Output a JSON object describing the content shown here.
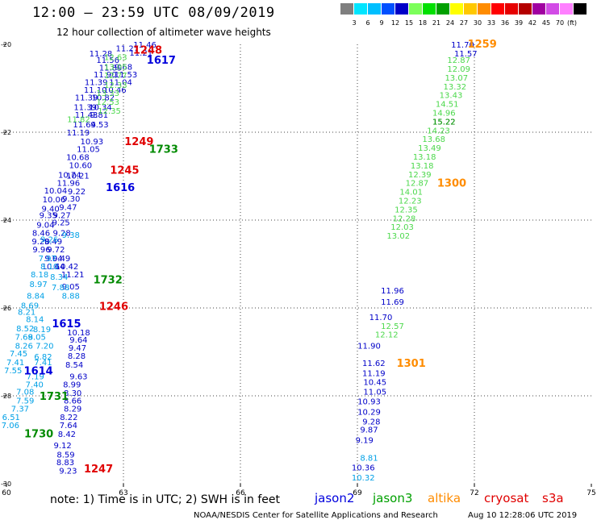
{
  "header": {
    "title": "12:00 – 23:59 UTC 08/09/2019",
    "subtitle": "12 hour collection of altimeter wave heights"
  },
  "scale": {
    "unit": "(ft)",
    "colors": [
      "#7f7f7f",
      "#00e5ff",
      "#00bfff",
      "#0050ff",
      "#0000c8",
      "#7cff5a",
      "#00e000",
      "#00a000",
      "#ffff00",
      "#ffc800",
      "#ff8c00",
      "#ff0000",
      "#e60000",
      "#b40000",
      "#a000a0",
      "#d24be6",
      "#ff80ff",
      "#000000"
    ],
    "labels": [
      "3",
      "6",
      "9",
      "12",
      "15",
      "18",
      "21",
      "24",
      "27",
      "30",
      "33",
      "36",
      "39",
      "42",
      "45",
      "70"
    ]
  },
  "axes": {
    "x_ticks": [
      "60",
      "63",
      "66",
      "69",
      "72",
      "75"
    ],
    "y_ticks": [
      "-20",
      "-22",
      "-24",
      "-26",
      "-28",
      "-30"
    ]
  },
  "time_labels": [
    {
      "text": "1248",
      "color": "#e00000",
      "lon": 63.62,
      "lat": -20.12
    },
    {
      "text": "1617",
      "color": "#0000dd",
      "lon": 63.97,
      "lat": -20.35
    },
    {
      "text": "1733",
      "color": "#008a00",
      "lon": 64.03,
      "lat": -22.38
    },
    {
      "text": "1249",
      "color": "#e00000",
      "lon": 63.4,
      "lat": -22.2
    },
    {
      "text": "1245",
      "color": "#e00000",
      "lon": 63.03,
      "lat": -22.85
    },
    {
      "text": "1616",
      "color": "#0000dd",
      "lon": 62.92,
      "lat": -23.25
    },
    {
      "text": "1732",
      "color": "#008a00",
      "lon": 62.6,
      "lat": -25.35
    },
    {
      "text": "1246",
      "color": "#e00000",
      "lon": 62.75,
      "lat": -25.95
    },
    {
      "text": "1615",
      "color": "#0000dd",
      "lon": 61.54,
      "lat": -26.35
    },
    {
      "text": "1614",
      "color": "#0000dd",
      "lon": 60.82,
      "lat": -27.42
    },
    {
      "text": "1731",
      "color": "#008a00",
      "lon": 61.22,
      "lat": -28.0
    },
    {
      "text": "1730",
      "color": "#008a00",
      "lon": 60.83,
      "lat": -28.85
    },
    {
      "text": "1247",
      "color": "#e00000",
      "lon": 62.36,
      "lat": -29.65
    },
    {
      "text": "1259",
      "color": "#ff8c00",
      "lon": 72.2,
      "lat": -19.98
    },
    {
      "text": "1300",
      "color": "#ff8c00",
      "lon": 71.42,
      "lat": -23.15
    },
    {
      "text": "1301",
      "color": "#ff8c00",
      "lon": 70.38,
      "lat": -27.25
    }
  ],
  "tracks": [
    {
      "name": "jason2-track1",
      "color": "#0000c8",
      "points": [
        [
          "11.46",
          63.55,
          -20.0
        ],
        [
          "11.27",
          63.1,
          -20.08
        ],
        [
          "11.21",
          63.45,
          -20.18
        ],
        [
          "11.28",
          62.42,
          -20.2
        ],
        [
          "11.56",
          62.6,
          -20.35
        ],
        [
          "11.89",
          62.67,
          -20.52
        ],
        [
          "9.68",
          63.0,
          -20.5
        ],
        [
          "11.90",
          62.53,
          -20.68
        ],
        [
          "11.53",
          63.06,
          -20.68
        ],
        [
          "11.39",
          62.3,
          -20.85
        ],
        [
          "11.04",
          62.93,
          -20.85
        ],
        [
          "11.10",
          62.28,
          -21.03
        ],
        [
          "10.46",
          62.78,
          -21.03
        ],
        [
          "11.39",
          62.05,
          -21.2
        ],
        [
          "10.82",
          62.48,
          -21.2
        ],
        [
          "11.39",
          62.02,
          -21.42
        ],
        [
          "10.34",
          62.41,
          -21.42
        ],
        [
          "11.43",
          62.05,
          -21.6
        ],
        [
          "9.81",
          62.38,
          -21.6
        ],
        [
          "11.64",
          62.0,
          -21.82
        ],
        [
          "9.53",
          62.39,
          -21.82
        ],
        [
          "11.19",
          61.84,
          -22.0
        ],
        [
          "10.93",
          62.19,
          -22.2
        ],
        [
          "11.05",
          62.1,
          -22.38
        ],
        [
          "10.68",
          61.83,
          -22.56
        ],
        [
          "10.60",
          61.9,
          -22.74
        ],
        [
          "10.74",
          61.62,
          -22.96
        ],
        [
          "11.96",
          61.59,
          -23.15
        ],
        [
          "10.21",
          61.83,
          -22.98
        ],
        [
          "10.04",
          61.26,
          -23.32
        ],
        [
          "9.22",
          61.8,
          -23.34
        ],
        [
          "10.06",
          61.22,
          -23.52
        ],
        [
          "9.30",
          61.66,
          -23.5
        ],
        [
          "9.40",
          61.13,
          -23.73
        ],
        [
          "9.47",
          61.58,
          -23.7
        ],
        [
          "9.35",
          61.07,
          -23.88
        ],
        [
          "9.27",
          61.42,
          -23.88
        ],
        [
          "9.04",
          61.0,
          -24.1
        ],
        [
          "9.25",
          61.4,
          -24.05
        ],
        [
          "9.28",
          61.42,
          -24.28
        ],
        [
          "8.46",
          60.89,
          -24.28
        ],
        [
          "9.28",
          60.88,
          -24.48
        ],
        [
          "9.49",
          61.2,
          -24.48
        ],
        [
          "9.72",
          61.27,
          -24.66
        ],
        [
          "9.96",
          60.9,
          -24.66
        ],
        [
          "9.04",
          61.21,
          -24.86
        ],
        [
          "9.49",
          61.41,
          -24.86
        ],
        [
          "10.64",
          61.2,
          -25.05
        ],
        [
          "10.42",
          61.55,
          -25.05
        ],
        [
          "11.21",
          61.7,
          -25.23
        ],
        [
          "9.05",
          61.65,
          -25.5
        ],
        [
          "10.18",
          61.85,
          -26.55
        ],
        [
          "9.64",
          61.85,
          -26.72
        ],
        [
          "9.47",
          61.82,
          -26.9
        ],
        [
          "8.28",
          61.8,
          -27.08
        ],
        [
          "8.54",
          61.74,
          -27.28
        ],
        [
          "9.63",
          61.85,
          -27.55
        ],
        [
          "8.99",
          61.68,
          -27.73
        ],
        [
          "8.30",
          61.7,
          -27.93
        ],
        [
          "8.66",
          61.7,
          -28.1
        ],
        [
          "8.29",
          61.7,
          -28.28
        ],
        [
          "8.22",
          61.6,
          -28.48
        ],
        [
          "7.64",
          61.59,
          -28.66
        ],
        [
          "8.42",
          61.55,
          -28.86
        ],
        [
          "9.12",
          61.44,
          -29.12
        ],
        [
          "8.59",
          61.52,
          -29.33
        ],
        [
          "8.83",
          61.51,
          -29.5
        ],
        [
          "9.23",
          61.58,
          -29.7
        ]
      ]
    },
    {
      "name": "jason3-track1",
      "color": "#4bd84b",
      "points": [
        [
          "12.63",
          62.8,
          -20.28
        ],
        [
          "13.05",
          62.8,
          -20.5
        ],
        [
          "12.77",
          62.8,
          -20.7
        ],
        [
          "12.33",
          62.8,
          -20.92
        ],
        [
          "13.33",
          62.6,
          -21.1
        ],
        [
          "12.53",
          62.6,
          -21.3
        ],
        [
          "12.35",
          62.64,
          -21.5
        ],
        [
          "11.82",
          61.85,
          -21.7
        ]
      ]
    },
    {
      "name": "jason3-track2",
      "color": "#00a0e6",
      "points": [
        [
          "9.38",
          61.65,
          -24.33
        ],
        [
          "9.26",
          61.1,
          -24.43
        ],
        [
          "7.97",
          61.05,
          -24.86
        ],
        [
          "8.10",
          61.1,
          -25.05
        ],
        [
          "8.18",
          60.85,
          -25.23
        ],
        [
          "8.34",
          61.35,
          -25.28
        ],
        [
          "8.97",
          60.82,
          -25.45
        ],
        [
          "7.88",
          61.39,
          -25.52
        ],
        [
          "8.84",
          60.75,
          -25.72
        ],
        [
          "8.88",
          61.65,
          -25.72
        ],
        [
          "8.69",
          60.6,
          -25.94
        ],
        [
          "8.21",
          60.52,
          -26.08
        ],
        [
          "8.14",
          60.73,
          -26.25
        ],
        [
          "8.52",
          60.48,
          -26.46
        ],
        [
          "8.19",
          60.91,
          -26.48
        ],
        [
          "7.69",
          60.45,
          -26.65
        ],
        [
          "8.05",
          60.78,
          -26.65
        ],
        [
          "8.26",
          60.45,
          -26.85
        ],
        [
          "7.20",
          60.98,
          -26.85
        ],
        [
          "7.45",
          60.31,
          -27.03
        ],
        [
          "6.82",
          60.94,
          -27.1
        ],
        [
          "7.41",
          60.23,
          -27.23
        ],
        [
          "7.41",
          60.94,
          -27.23
        ],
        [
          "7.55",
          60.17,
          -27.41
        ],
        [
          "7.19",
          60.74,
          -27.55
        ],
        [
          "7.40",
          60.72,
          -27.73
        ],
        [
          "7.08",
          60.48,
          -27.9
        ],
        [
          "7.59",
          60.48,
          -28.1
        ],
        [
          "7.37",
          60.35,
          -28.28
        ],
        [
          "6.51",
          60.12,
          -28.48
        ],
        [
          "7.06",
          60.1,
          -28.66
        ],
        [
          "10.32",
          69.15,
          -29.85
        ],
        [
          "8.81",
          69.3,
          -29.4
        ]
      ]
    },
    {
      "name": "jason2-track2",
      "color": "#0000c8",
      "points": [
        [
          "11.70",
          71.7,
          -20.0
        ],
        [
          "11.57",
          71.78,
          -20.2
        ],
        [
          "11.96",
          69.9,
          -25.6
        ],
        [
          "11.69",
          69.9,
          -25.85
        ],
        [
          "11.70",
          69.6,
          -26.2
        ],
        [
          "11.90",
          69.3,
          -26.85
        ],
        [
          "11.62",
          69.42,
          -27.25
        ],
        [
          "11.19",
          69.42,
          -27.48
        ],
        [
          "10.45",
          69.45,
          -27.68
        ],
        [
          "11.05",
          69.45,
          -27.9
        ],
        [
          "10.93",
          69.3,
          -28.12
        ],
        [
          "10.29",
          69.3,
          -28.36
        ],
        [
          "9.28",
          69.36,
          -28.58
        ],
        [
          "9.87",
          69.3,
          -28.76
        ],
        [
          "9.19",
          69.18,
          -29.0
        ],
        [
          "10.36",
          69.15,
          -29.62
        ]
      ]
    },
    {
      "name": "jason3-track3",
      "color": "#4bd84b",
      "points": [
        [
          "12.87",
          71.6,
          -20.35
        ],
        [
          "12.09",
          71.6,
          -20.55
        ],
        [
          "13.07",
          71.54,
          -20.75
        ],
        [
          "13.32",
          71.5,
          -20.95
        ],
        [
          "13.43",
          71.4,
          -21.15
        ],
        [
          "14.51",
          71.3,
          -21.35
        ],
        [
          "14.96",
          71.22,
          -21.55
        ],
        [
          "15.22",
          71.22,
          -21.75
        ],
        [
          "14.23",
          71.08,
          -21.95
        ],
        [
          "13.68",
          70.96,
          -22.15
        ],
        [
          "13.49",
          70.85,
          -22.35
        ],
        [
          "13.18",
          70.72,
          -22.55
        ],
        [
          "13.18",
          70.66,
          -22.75
        ],
        [
          "12.39",
          70.6,
          -22.95
        ],
        [
          "12.87",
          70.53,
          -23.15
        ],
        [
          "14.01",
          70.38,
          -23.35
        ],
        [
          "12.23",
          70.35,
          -23.55
        ],
        [
          "12.35",
          70.25,
          -23.75
        ],
        [
          "12.28",
          70.2,
          -23.95
        ],
        [
          "12.03",
          70.15,
          -24.15
        ],
        [
          "13.02",
          70.05,
          -24.35
        ],
        [
          "12.57",
          69.9,
          -26.4
        ],
        [
          "12.12",
          69.75,
          -26.6
        ]
      ]
    },
    {
      "name": "jason3-track3-top",
      "color": "#008a00",
      "points": [
        [
          "15.22",
          71.22,
          -21.75
        ]
      ]
    }
  ],
  "footer": {
    "note": "note:  1) Time is in UTC;  2) SWH is in feet",
    "satellites": [
      {
        "name": "jason2",
        "color": "#0000dd"
      },
      {
        "name": "jason3",
        "color": "#00a000"
      },
      {
        "name": "altika",
        "color": "#ff8c00"
      },
      {
        "name": "cryosat",
        "color": "#e00000"
      },
      {
        "name": "s3a",
        "color": "#e00000"
      }
    ],
    "credit": "NOAA/NESDIS Center for Satellite Applications and Research",
    "timestamp": "Aug 10 12:28:06 UTC 2019"
  }
}
